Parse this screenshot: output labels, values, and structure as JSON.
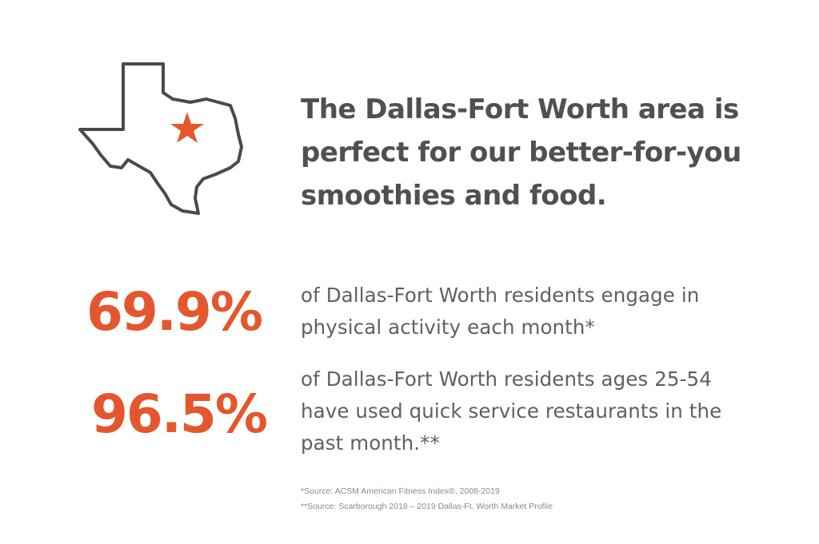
{
  "map": {
    "region": "Texas",
    "outline_color": "#4a4a4a",
    "marker": "star-icon",
    "marker_color": "#e4572e"
  },
  "headline": "The Dallas-Fort Worth area is perfect for our better-for-you smoothies and food.",
  "stats": [
    {
      "value": "69.9%",
      "description": "of Dallas-Fort Worth residents engage in physical activity each month*"
    },
    {
      "value": "96.5%",
      "description": "of Dallas-Fort Worth residents ages 25-54 have used quick service restaurants in the past month.**"
    }
  ],
  "sources": [
    "*Source: ACSM American Fitness Index®, 2008-2019",
    "**Source: Scarborough 2018 – 2019 Dallas-Ft. Worth Market Profile"
  ],
  "colors": {
    "accent": "#e4572e",
    "heading": "#505050",
    "body_text": "#606060",
    "footnote": "#8a8a8a"
  }
}
